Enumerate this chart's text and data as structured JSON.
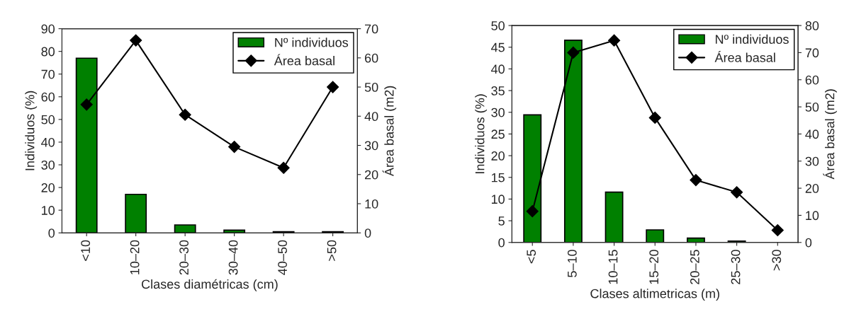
{
  "chart_data": [
    {
      "type": "bar",
      "xlabel": "Clases diamétricas (cm)",
      "ylabel": "Individuos (%)",
      "y2label": "Área basal (m2)",
      "categories": [
        "<10",
        "10–20",
        "20–30",
        "30–40",
        "40–50",
        ">50"
      ],
      "series": [
        {
          "name": "Nº individuos",
          "color": "#008000",
          "values": [
            77,
            17,
            3.5,
            1.2,
            0.5,
            0.5
          ]
        },
        {
          "name": "Área basal",
          "type": "line",
          "axis": "y2",
          "color": "#000000",
          "marker": "diamond",
          "values": [
            44,
            66,
            40.5,
            29.5,
            22.3,
            50
          ]
        }
      ],
      "ylim": [
        0,
        90
      ],
      "yticks": [
        0,
        10,
        20,
        30,
        40,
        50,
        60,
        70,
        80,
        90
      ],
      "y2lim": [
        0,
        70
      ],
      "y2ticks": [
        0,
        10,
        20,
        30,
        40,
        50,
        60,
        70
      ],
      "grid": false,
      "legend": "top right"
    },
    {
      "type": "bar",
      "xlabel": "Clases altimetricas (m)",
      "ylabel": "Individuos (%)",
      "y2label": "Área basal (m2)",
      "categories": [
        "<5",
        "5–10",
        "10–15",
        "15–20",
        "20–25",
        "25–30",
        ">30"
      ],
      "series": [
        {
          "name": "Nº individuos",
          "color": "#008000",
          "values": [
            29.4,
            46.6,
            11.6,
            2.9,
            1.0,
            0.3,
            null
          ]
        },
        {
          "name": "Área basal",
          "type": "line",
          "axis": "y2",
          "color": "#000000",
          "marker": "diamond",
          "values": [
            11.5,
            70,
            74.5,
            46,
            23,
            18.5,
            4.5
          ]
        }
      ],
      "ylim": [
        0,
        50
      ],
      "yticks": [
        0,
        5,
        10,
        15,
        20,
        25,
        30,
        35,
        40,
        45,
        50
      ],
      "y2lim": [
        0,
        80
      ],
      "y2ticks": [
        0,
        10,
        20,
        30,
        40,
        50,
        60,
        70,
        80
      ],
      "grid": false,
      "legend": "top right"
    }
  ]
}
